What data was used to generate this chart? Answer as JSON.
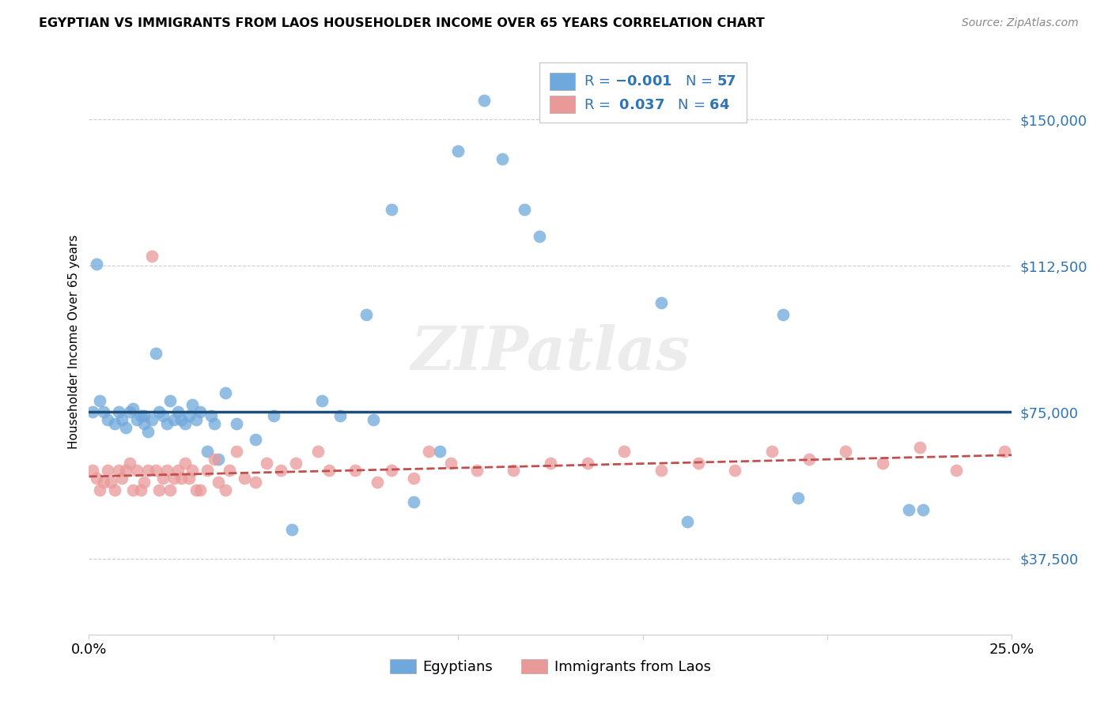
{
  "title": "EGYPTIAN VS IMMIGRANTS FROM LAOS HOUSEHOLDER INCOME OVER 65 YEARS CORRELATION CHART",
  "source": "Source: ZipAtlas.com",
  "ylabel": "Householder Income Over 65 years",
  "yticks": [
    37500,
    75000,
    112500,
    150000
  ],
  "ytick_labels": [
    "$37,500",
    "$75,000",
    "$112,500",
    "$150,000"
  ],
  "xlim": [
    0.0,
    0.25
  ],
  "ylim": [
    18000,
    168000
  ],
  "legend_n_egyptian": "57",
  "legend_r_laos": "0.037",
  "legend_n_laos": "64",
  "color_egyptian": "#6fa8dc",
  "color_laos": "#ea9999",
  "trendline_egyptian_color": "#1f4e79",
  "trendline_laos_color": "#c0504d",
  "watermark": "ZIPatlas",
  "eg_x": [
    0.001,
    0.003,
    0.004,
    0.005,
    0.007,
    0.008,
    0.009,
    0.01,
    0.011,
    0.012,
    0.013,
    0.014,
    0.015,
    0.015,
    0.016,
    0.017,
    0.018,
    0.019,
    0.02,
    0.021,
    0.022,
    0.023,
    0.024,
    0.025,
    0.026,
    0.027,
    0.028,
    0.029,
    0.03,
    0.032,
    0.033,
    0.034,
    0.035,
    0.037,
    0.04,
    0.045,
    0.05,
    0.055,
    0.063,
    0.068,
    0.075,
    0.077,
    0.082,
    0.088,
    0.095,
    0.1,
    0.107,
    0.112,
    0.118,
    0.122,
    0.155,
    0.162,
    0.188,
    0.192,
    0.222,
    0.226,
    0.002
  ],
  "eg_y": [
    75000,
    78000,
    75000,
    73000,
    72000,
    75000,
    73000,
    71000,
    75000,
    76000,
    73000,
    74000,
    74000,
    72000,
    70000,
    73000,
    90000,
    75000,
    74000,
    72000,
    78000,
    73000,
    75000,
    73000,
    72000,
    74000,
    77000,
    73000,
    75000,
    65000,
    74000,
    72000,
    63000,
    80000,
    72000,
    68000,
    74000,
    45000,
    78000,
    74000,
    100000,
    73000,
    127000,
    52000,
    65000,
    142000,
    155000,
    140000,
    127000,
    120000,
    103000,
    47000,
    100000,
    53000,
    50000,
    50000,
    113000
  ],
  "la_x": [
    0.001,
    0.002,
    0.003,
    0.004,
    0.005,
    0.006,
    0.007,
    0.008,
    0.009,
    0.01,
    0.011,
    0.012,
    0.013,
    0.014,
    0.015,
    0.016,
    0.017,
    0.018,
    0.019,
    0.02,
    0.021,
    0.022,
    0.023,
    0.024,
    0.025,
    0.026,
    0.027,
    0.028,
    0.029,
    0.03,
    0.032,
    0.034,
    0.035,
    0.037,
    0.038,
    0.04,
    0.042,
    0.045,
    0.048,
    0.052,
    0.056,
    0.062,
    0.065,
    0.072,
    0.078,
    0.082,
    0.088,
    0.092,
    0.098,
    0.105,
    0.115,
    0.125,
    0.135,
    0.145,
    0.155,
    0.165,
    0.175,
    0.185,
    0.195,
    0.205,
    0.215,
    0.225,
    0.235,
    0.248
  ],
  "la_y": [
    60000,
    58000,
    55000,
    57000,
    60000,
    57000,
    55000,
    60000,
    58000,
    60000,
    62000,
    55000,
    60000,
    55000,
    57000,
    60000,
    115000,
    60000,
    55000,
    58000,
    60000,
    55000,
    58000,
    60000,
    58000,
    62000,
    58000,
    60000,
    55000,
    55000,
    60000,
    63000,
    57000,
    55000,
    60000,
    65000,
    58000,
    57000,
    62000,
    60000,
    62000,
    65000,
    60000,
    60000,
    57000,
    60000,
    58000,
    65000,
    62000,
    60000,
    60000,
    62000,
    62000,
    65000,
    60000,
    62000,
    60000,
    65000,
    63000,
    65000,
    62000,
    66000,
    60000,
    65000
  ]
}
